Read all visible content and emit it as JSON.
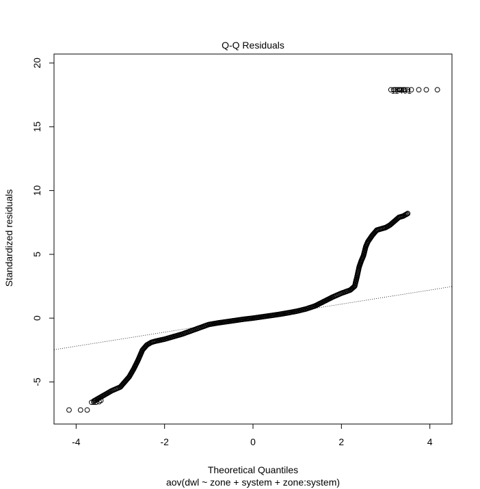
{
  "chart_data": {
    "type": "scatter",
    "title": "Q-Q Residuals",
    "xlabel": "Theoretical Quantiles",
    "ylabel": "Standardized residuals",
    "subtitle": "aov(dwl ~ zone + system + zone:system)",
    "xlim": [
      -4.5,
      4.5
    ],
    "ylim": [
      -8.3,
      20.7
    ],
    "x_ticks": [
      -4,
      -2,
      0,
      2,
      4
    ],
    "y_ticks": [
      -5,
      0,
      5,
      10,
      15,
      20
    ],
    "grid": false,
    "reference_line": {
      "slope": 0.55,
      "intercept": 0.0,
      "style": "dotted"
    },
    "outlier_label": "11401",
    "outliers": {
      "x": [
        3.12,
        3.18,
        3.22,
        3.26,
        3.3,
        3.33,
        3.36,
        3.4,
        3.44,
        3.5,
        3.58,
        3.75,
        3.92,
        4.17
      ],
      "y": [
        17.9,
        17.9,
        17.9,
        17.9,
        17.9,
        17.9,
        17.9,
        17.9,
        17.9,
        17.9,
        17.9,
        17.9,
        17.9,
        17.9
      ]
    },
    "series": [
      {
        "curve_x": [
          -3.6,
          -3.4,
          -3.2,
          -3.0,
          -2.9,
          -2.8,
          -2.7,
          -2.6,
          -2.5,
          -2.4,
          -2.3,
          -2.2,
          -2.0,
          -1.8,
          -1.6,
          -1.4,
          -1.2,
          -1.0,
          -0.8,
          -0.6,
          -0.4,
          -0.2,
          0.0,
          0.2,
          0.4,
          0.6,
          0.8,
          1.0,
          1.2,
          1.4,
          1.6,
          1.8,
          2.0,
          2.2,
          2.3,
          2.35,
          2.4,
          2.45,
          2.5,
          2.55,
          2.6,
          2.7,
          2.8,
          2.9,
          3.0,
          3.1,
          3.2,
          3.3,
          3.4,
          3.5
        ],
        "curve_y": [
          -6.5,
          -6.1,
          -5.7,
          -5.4,
          -5.0,
          -4.6,
          -4.0,
          -3.3,
          -2.5,
          -2.1,
          -1.9,
          -1.8,
          -1.65,
          -1.45,
          -1.25,
          -1.0,
          -0.75,
          -0.5,
          -0.38,
          -0.28,
          -0.18,
          -0.08,
          0.0,
          0.1,
          0.2,
          0.3,
          0.42,
          0.55,
          0.72,
          0.95,
          1.3,
          1.65,
          1.95,
          2.2,
          2.5,
          3.2,
          4.0,
          4.5,
          4.9,
          5.6,
          6.0,
          6.5,
          6.9,
          7.0,
          7.1,
          7.3,
          7.6,
          7.9,
          8.0,
          8.2
        ]
      }
    ],
    "tail_points": {
      "x": [
        -4.16,
        -3.9,
        -3.75,
        -3.65,
        -3.6,
        -3.55,
        -3.48,
        -3.44
      ],
      "y": [
        -7.2,
        -7.2,
        -7.2,
        -6.6,
        -6.6,
        -6.6,
        -6.55,
        -6.45
      ]
    }
  }
}
